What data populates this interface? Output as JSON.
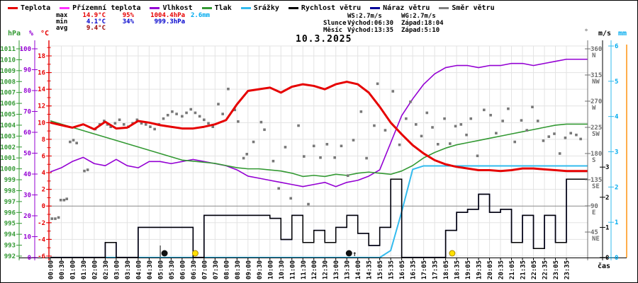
{
  "window": {
    "title": "10.3.2025",
    "time_axis_label": "čas"
  },
  "legend": {
    "items": [
      {
        "label": "Teplota",
        "color": "#e60000"
      },
      {
        "label": "Přízemní teplota",
        "color": "#ff30ff"
      },
      {
        "label": "Vlhkost",
        "color": "#9400d3"
      },
      {
        "label": "Tlak",
        "color": "#339933"
      },
      {
        "label": "Srážky",
        "color": "#33bbee"
      },
      {
        "label": "Rychlost větru",
        "color": "#000000"
      },
      {
        "label": "Náraz větru",
        "color": "#000099"
      },
      {
        "label": "Směr větru",
        "color": "#808080"
      }
    ]
  },
  "stats": {
    "max": {
      "label": "max",
      "temp": "14.9°C",
      "humidity": "95%",
      "pressure": "1004.4hPa",
      "precip": "2.6mm"
    },
    "min": {
      "label": "min",
      "temp": "4.1°C",
      "humidity": "34%",
      "pressure": "999.3hPa"
    },
    "avg": {
      "label": "avg",
      "temp": "9.4°C"
    },
    "wind": {
      "ws": "WS:2.7m/s",
      "wg": "WG:2.7m/s"
    },
    "sun": {
      "label": "Slunce",
      "rise": "Východ:06:30",
      "set": "Západ:18:04"
    },
    "moon": {
      "label": "Měsíc",
      "rise": "Východ:13:35",
      "set": "Západ:5:10"
    }
  },
  "axes": {
    "pressure": {
      "header": "hPa",
      "color": "#339933",
      "labels": [
        1011,
        1010,
        1009,
        1008,
        1007,
        1006,
        1005,
        1004,
        1003,
        1002,
        1001,
        1000,
        999,
        998,
        997,
        996,
        995,
        994,
        993,
        992
      ]
    },
    "humidity": {
      "header": "%",
      "color": "#9400d3",
      "labels": [
        100,
        90,
        80,
        70,
        60,
        50,
        40,
        30,
        20,
        10,
        0
      ]
    },
    "temperature": {
      "header": "°C",
      "color": "#e60000",
      "labels": [
        18,
        16,
        14,
        12,
        10,
        8,
        6,
        4,
        2,
        0,
        -2,
        -4,
        -6
      ]
    },
    "direction": {
      "header": "°",
      "color": "#707070",
      "labels": [
        {
          "deg": "360",
          "dir": "N"
        },
        {
          "deg": "315",
          "dir": "NW"
        },
        {
          "deg": "270",
          "dir": "W"
        },
        {
          "deg": "225",
          "dir": "SW"
        },
        {
          "deg": "180",
          "dir": "S"
        },
        {
          "deg": "135",
          "dir": "SE"
        },
        {
          "deg": "90",
          "dir": "E"
        },
        {
          "deg": "45",
          "dir": "NE"
        }
      ]
    },
    "wind": {
      "header": "m/s",
      "color": "#000000",
      "labels": [
        3,
        2,
        1,
        0
      ]
    },
    "precip": {
      "header": "mm",
      "color": "#00aaee",
      "labels": [
        6,
        5,
        4,
        3,
        2,
        1,
        0
      ]
    }
  },
  "chart_data": {
    "type": "line",
    "title": "10.3.2025",
    "xlabel": "čas",
    "grid": true,
    "x_labels": [
      "00:00",
      "00:30",
      "01:00",
      "01:30",
      "02:00",
      "02:30",
      "03:00",
      "03:30",
      "04:00",
      "04:30",
      "05:00",
      "05:30",
      "06:00",
      "06:30",
      "07:00",
      "07:30",
      "08:00",
      "08:30",
      "09:00",
      "09:30",
      "10:00",
      "10:30",
      "11:00",
      "11:30",
      "12:00",
      "12:30",
      "13:00",
      "13:30",
      "14:00",
      "14:35",
      "15:05",
      "15:35",
      "16:05",
      "16:35",
      "17:05",
      "17:35",
      "18:05",
      "18:35",
      "19:05",
      "19:35",
      "20:05",
      "20:35",
      "21:05",
      "21:35",
      "22:05",
      "22:35",
      "23:05",
      "23:35"
    ],
    "axis_ranges": {
      "temperature_c": [
        -6,
        19
      ],
      "humidity_pct": [
        0,
        100
      ],
      "pressure_hpa": [
        992,
        1011
      ],
      "direction_deg": [
        0,
        364
      ],
      "wind_ms": [
        0,
        7
      ],
      "precip_mm": [
        0,
        6
      ]
    },
    "series": [
      {
        "name": "Teplota",
        "unit": "°C",
        "axis": "temperature",
        "color": "#e60000",
        "width": 3,
        "values": [
          10.0,
          9.7,
          9.4,
          9.8,
          9.2,
          10.1,
          9.3,
          9.4,
          10.2,
          10.0,
          9.7,
          9.5,
          9.3,
          9.3,
          9.5,
          9.8,
          10.3,
          12.2,
          13.8,
          14.0,
          14.2,
          13.6,
          14.3,
          14.6,
          14.4,
          14.0,
          14.6,
          14.9,
          14.6,
          13.6,
          11.9,
          10.0,
          8.6,
          7.3,
          6.3,
          5.5,
          5.0,
          4.7,
          4.5,
          4.3,
          4.3,
          4.2,
          4.3,
          4.5,
          4.5,
          4.4,
          4.3,
          4.2
        ]
      },
      {
        "name": "Vlhkost",
        "unit": "%",
        "axis": "humidity",
        "color": "#9400d3",
        "width": 1.6,
        "values": [
          41,
          43,
          46,
          48,
          45,
          44,
          47,
          44,
          43,
          46,
          46,
          45,
          46,
          47,
          46,
          45,
          44,
          42,
          39,
          38,
          37,
          36,
          35,
          34,
          35,
          36,
          34,
          36,
          37,
          39,
          42,
          55,
          68,
          76,
          83,
          88,
          91,
          92,
          92,
          91,
          92,
          92,
          93,
          93,
          92,
          93,
          94,
          95
        ]
      },
      {
        "name": "Tlak",
        "unit": "hPa",
        "axis": "pressure",
        "color": "#339933",
        "width": 1.6,
        "values": [
          1004.4,
          1004.1,
          1003.8,
          1003.5,
          1003.2,
          1002.9,
          1002.6,
          1002.3,
          1002.0,
          1001.7,
          1001.4,
          1001.1,
          1000.8,
          1000.7,
          1000.6,
          1000.5,
          1000.3,
          1000.1,
          1000.0,
          1000.0,
          999.9,
          999.8,
          999.6,
          999.3,
          999.4,
          999.3,
          999.5,
          999.4,
          999.6,
          999.7,
          999.6,
          999.5,
          999.8,
          1000.3,
          1001.0,
          1001.5,
          1001.9,
          1002.2,
          1002.4,
          1002.6,
          1002.8,
          1003.0,
          1003.2,
          1003.4,
          1003.6,
          1003.8,
          1004.0,
          1004.1
        ]
      },
      {
        "name": "Srážky",
        "unit": "mm",
        "axis": "precip",
        "color": "#33bbee",
        "width": 2,
        "values": [
          0,
          0,
          0,
          0,
          0,
          0,
          0,
          0,
          0,
          0,
          0,
          0,
          0,
          0,
          0,
          0,
          0,
          0,
          0,
          0,
          0,
          0,
          0,
          0,
          0,
          0,
          0,
          0,
          0,
          0,
          0,
          0.2,
          1.3,
          2.5,
          2.6,
          2.6,
          2.6,
          2.6,
          2.6,
          2.6,
          2.6,
          2.6,
          2.6,
          2.6,
          2.6,
          2.6,
          2.6,
          2.6
        ]
      },
      {
        "name": "Náraz větru",
        "unit": "m/s",
        "axis": "wind",
        "color": "#000099",
        "width": 1.5,
        "step": true,
        "values": [
          0,
          0,
          0,
          0,
          0,
          0.5,
          0,
          0,
          1.0,
          1.0,
          1.0,
          1.0,
          1.0,
          0,
          1.4,
          1.4,
          1.4,
          1.4,
          1.4,
          1.4,
          1.3,
          0.6,
          1.4,
          0.5,
          0.9,
          0.5,
          1.0,
          1.4,
          0.8,
          0.4,
          1.0,
          2.6,
          0,
          0,
          0,
          0,
          0.9,
          1.5,
          1.6,
          2.1,
          1.5,
          1.6,
          0.5,
          1.4,
          0.3,
          1.4,
          0.5,
          2.6
        ]
      },
      {
        "name": "Rychlost větru",
        "unit": "m/s",
        "axis": "wind",
        "color": "#000000",
        "width": 1.5,
        "step": true,
        "values": [
          0,
          0,
          0,
          0,
          0,
          0.5,
          0,
          0,
          1.0,
          1.0,
          1.0,
          1.0,
          1.0,
          0,
          1.4,
          1.4,
          1.4,
          1.4,
          1.4,
          1.4,
          1.3,
          0.6,
          1.4,
          0.5,
          0.9,
          0.5,
          1.0,
          1.4,
          0.8,
          0.4,
          1.0,
          2.6,
          0,
          0,
          0,
          0,
          0.9,
          1.5,
          1.6,
          2.1,
          1.5,
          1.6,
          0.5,
          1.4,
          0.3,
          1.4,
          0.5,
          2.6
        ]
      }
    ],
    "wind_direction_points": [
      [
        0.15,
        68
      ],
      [
        0.45,
        68
      ],
      [
        0.75,
        70
      ],
      [
        0.95,
        100
      ],
      [
        1.25,
        100
      ],
      [
        1.5,
        102
      ],
      [
        1.8,
        200
      ],
      [
        2.1,
        203
      ],
      [
        2.4,
        198
      ],
      [
        3.1,
        150
      ],
      [
        3.4,
        152
      ],
      [
        4.1,
        222
      ],
      [
        4.5,
        230
      ],
      [
        4.9,
        236
      ],
      [
        5.2,
        230
      ],
      [
        5.5,
        226
      ],
      [
        5.9,
        232
      ],
      [
        6.3,
        238
      ],
      [
        6.7,
        230
      ],
      [
        7.1,
        226
      ],
      [
        7.5,
        232
      ],
      [
        7.9,
        238
      ],
      [
        8.3,
        232
      ],
      [
        8.7,
        230
      ],
      [
        9.1,
        226
      ],
      [
        9.5,
        222
      ],
      [
        9.9,
        230
      ],
      [
        10.3,
        240
      ],
      [
        10.7,
        246
      ],
      [
        11.1,
        252
      ],
      [
        11.5,
        248
      ],
      [
        12.0,
        244
      ],
      [
        12.4,
        250
      ],
      [
        12.8,
        256
      ],
      [
        13.2,
        250
      ],
      [
        13.6,
        244
      ],
      [
        14.0,
        238
      ],
      [
        14.4,
        232
      ],
      [
        14.8,
        226
      ],
      [
        15.3,
        265
      ],
      [
        15.7,
        248
      ],
      [
        16.2,
        291
      ],
      [
        16.8,
        255
      ],
      [
        17.1,
        235
      ],
      [
        17.6,
        172
      ],
      [
        17.9,
        179
      ],
      [
        18.5,
        200
      ],
      [
        19.2,
        234
      ],
      [
        19.5,
        221
      ],
      [
        20.3,
        167
      ],
      [
        20.8,
        120
      ],
      [
        21.4,
        191
      ],
      [
        21.9,
        103
      ],
      [
        22.6,
        228
      ],
      [
        23.1,
        175
      ],
      [
        23.5,
        93
      ],
      [
        24.0,
        193
      ],
      [
        24.6,
        173
      ],
      [
        25.2,
        196
      ],
      [
        25.9,
        173
      ],
      [
        26.5,
        193
      ],
      [
        27.1,
        142
      ],
      [
        27.6,
        203
      ],
      [
        28.3,
        252
      ],
      [
        28.8,
        172
      ],
      [
        29.5,
        228
      ],
      [
        29.8,
        300
      ],
      [
        30.5,
        220
      ],
      [
        31.2,
        287
      ],
      [
        31.8,
        195
      ],
      [
        32.4,
        240
      ],
      [
        32.8,
        269
      ],
      [
        33.3,
        230
      ],
      [
        33.8,
        210
      ],
      [
        34.3,
        250
      ],
      [
        34.8,
        225
      ],
      [
        35.3,
        196
      ],
      [
        35.9,
        240
      ],
      [
        36.4,
        197
      ],
      [
        36.9,
        227
      ],
      [
        37.4,
        230
      ],
      [
        37.9,
        212
      ],
      [
        38.3,
        240
      ],
      [
        38.9,
        176
      ],
      [
        39.5,
        255
      ],
      [
        40.1,
        246
      ],
      [
        40.6,
        215
      ],
      [
        41.2,
        236
      ],
      [
        41.7,
        257
      ],
      [
        42.3,
        200
      ],
      [
        42.9,
        237
      ],
      [
        43.4,
        220
      ],
      [
        43.9,
        260
      ],
      [
        44.4,
        236
      ],
      [
        44.9,
        202
      ],
      [
        45.4,
        209
      ],
      [
        45.9,
        214
      ],
      [
        46.4,
        180
      ],
      [
        46.9,
        207
      ],
      [
        47.4,
        215
      ],
      [
        47.9,
        212
      ],
      [
        48.3,
        205
      ]
    ],
    "markers": [
      {
        "type": "moon-set",
        "x_index": 10.4
      },
      {
        "type": "sun-rise",
        "x_index": 13.2
      },
      {
        "type": "moon-rise",
        "x_index": 27.2
      },
      {
        "type": "sun-set",
        "x_index": 36.6
      }
    ],
    "marker_colors": {
      "sun": "#ffe000",
      "moon": "#111111"
    }
  }
}
